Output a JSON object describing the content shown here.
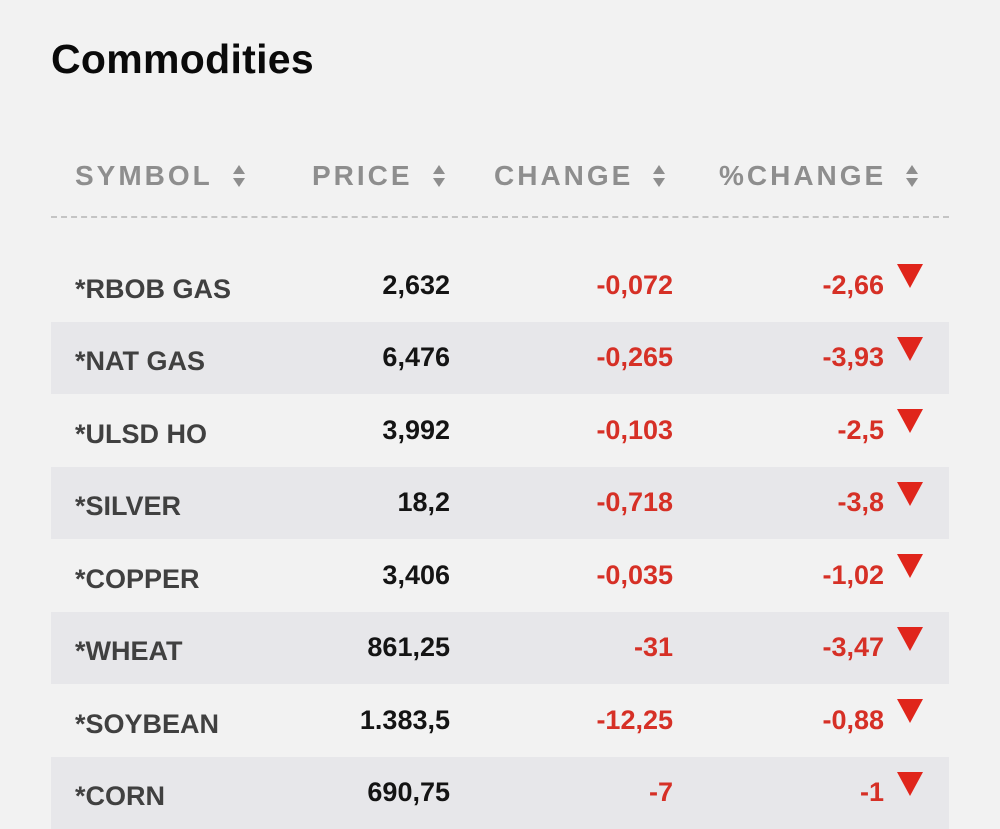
{
  "title": "Commodities",
  "columns": [
    {
      "label": "SYMBOL"
    },
    {
      "label": "PRICE"
    },
    {
      "label": "CHANGE"
    },
    {
      "label": "%CHANGE"
    }
  ],
  "colors": {
    "negative": "#d63026",
    "arrow": "#e0251b",
    "header_text": "#8e8e8e",
    "alt_row": "#e7e7ea",
    "background": "#f2f2f2"
  },
  "rows": [
    {
      "symbol": "*RBOB GAS",
      "price": "2,632",
      "change": "-0,072",
      "pct_change": "-2,66",
      "direction": "down-arrow-icon"
    },
    {
      "symbol": "*NAT GAS",
      "price": "6,476",
      "change": "-0,265",
      "pct_change": "-3,93",
      "direction": "down-arrow-icon"
    },
    {
      "symbol": "*ULSD HO",
      "price": "3,992",
      "change": "-0,103",
      "pct_change": "-2,5",
      "direction": "down-arrow-icon"
    },
    {
      "symbol": "*SILVER",
      "price": "18,2",
      "change": "-0,718",
      "pct_change": "-3,8",
      "direction": "down-arrow-icon"
    },
    {
      "symbol": "*COPPER",
      "price": "3,406",
      "change": "-0,035",
      "pct_change": "-1,02",
      "direction": "down-arrow-icon"
    },
    {
      "symbol": "*WHEAT",
      "price": "861,25",
      "change": "-31",
      "pct_change": "-3,47",
      "direction": "down-arrow-icon"
    },
    {
      "symbol": "*SOYBEAN",
      "price": "1.383,5",
      "change": "-12,25",
      "pct_change": "-0,88",
      "direction": "down-arrow-icon"
    },
    {
      "symbol": "*CORN",
      "price": "690,75",
      "change": "-7",
      "pct_change": "-1",
      "direction": "down-arrow-icon"
    }
  ]
}
